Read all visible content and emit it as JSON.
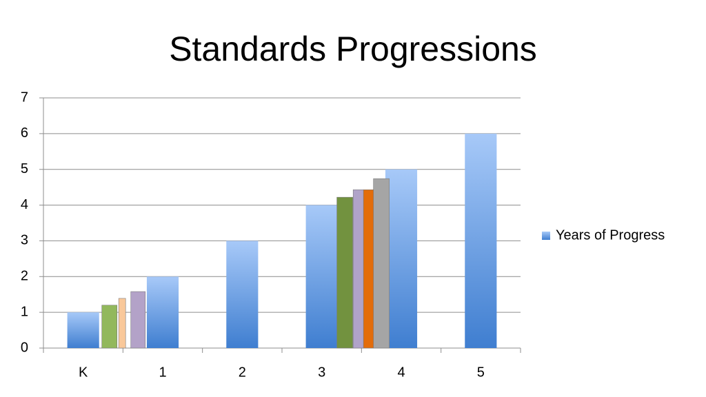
{
  "chart_data": {
    "type": "bar",
    "title": "Standards Progressions",
    "categories": [
      "K",
      "1",
      "2",
      "3",
      "4",
      "5"
    ],
    "series": [
      {
        "name": "Years of Progress",
        "color": "#4f88d8",
        "values": [
          1,
          2,
          3,
          4,
          5,
          6
        ]
      }
    ],
    "overlay_bars": [
      {
        "x": 0.33,
        "value": 1.2,
        "color": "#92b85c"
      },
      {
        "x": 0.49,
        "value": 1.39,
        "color": "#f9c89a"
      },
      {
        "x": 0.69,
        "value": 1.58,
        "color": "#b3a2c8"
      },
      {
        "x": 3.29,
        "value": 4.22,
        "color": "#72923f"
      },
      {
        "x": 3.46,
        "value": 4.43,
        "color": "#b0a3c9"
      },
      {
        "x": 3.59,
        "value": 4.43,
        "color": "#e36c0a"
      },
      {
        "x": 3.75,
        "value": 4.74,
        "color": "#a5a5a5"
      }
    ],
    "ylim": [
      0,
      7
    ],
    "yticks": [
      0,
      1,
      2,
      3,
      4,
      5,
      6,
      7
    ],
    "grid": true,
    "legend": "right"
  }
}
